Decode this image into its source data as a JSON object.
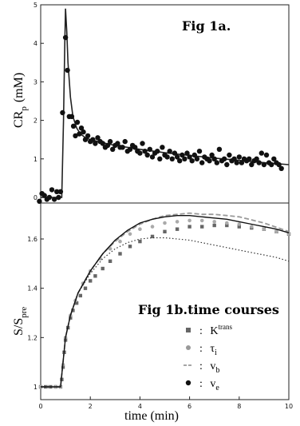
{
  "chart_data": [
    {
      "type": "scatter",
      "title": "Fig 1a.",
      "ylabel_main": "CR",
      "ylabel_sub": "p",
      "ylabel_units": "(mM)",
      "xlim": [
        0,
        10
      ],
      "ylim": [
        0,
        5
      ],
      "yticks": [
        "0",
        "1",
        "2",
        "3",
        "4",
        "5"
      ],
      "series": [
        {
          "style": "points",
          "x": [
            -0.05,
            0.05,
            0.15,
            0.25,
            0.35,
            0.45,
            0.55,
            0.65,
            0.72,
            0.8,
            0.88,
            1.0,
            1.08,
            1.15,
            1.25,
            1.32,
            1.4,
            1.48,
            1.56,
            1.64,
            1.72,
            1.8,
            1.9,
            2.0,
            2.1,
            2.2,
            2.3,
            2.4,
            2.5,
            2.6,
            2.7,
            2.8,
            2.9,
            3.0,
            3.1,
            3.2,
            3.3,
            3.4,
            3.5,
            3.6,
            3.7,
            3.8,
            3.9,
            4.0,
            4.1,
            4.2,
            4.3,
            4.4,
            4.5,
            4.6,
            4.7,
            4.8,
            4.9,
            5.0,
            5.1,
            5.2,
            5.3,
            5.4,
            5.5,
            5.6,
            5.7,
            5.8,
            5.9,
            6.0,
            6.1,
            6.2,
            6.3,
            6.4,
            6.5,
            6.6,
            6.7,
            6.8,
            6.9,
            7.0,
            7.1,
            7.2,
            7.3,
            7.4,
            7.5,
            7.6,
            7.7,
            7.8,
            7.9,
            8.0,
            8.1,
            8.2,
            8.3,
            8.4,
            8.5,
            8.6,
            8.7,
            8.8,
            8.9,
            9.0,
            9.1,
            9.2,
            9.3,
            9.4,
            9.5,
            9.6,
            9.7
          ],
          "y": [
            -0.1,
            0.1,
            0.05,
            -0.05,
            0.0,
            0.2,
            -0.05,
            0.15,
            0.0,
            0.15,
            2.2,
            4.15,
            3.3,
            2.1,
            2.1,
            1.85,
            1.6,
            1.95,
            1.65,
            1.8,
            1.7,
            1.5,
            1.6,
            1.45,
            1.5,
            1.4,
            1.55,
            1.45,
            1.4,
            1.3,
            1.35,
            1.45,
            1.25,
            1.35,
            1.4,
            1.3,
            1.3,
            1.45,
            1.2,
            1.25,
            1.35,
            1.3,
            1.2,
            1.15,
            1.4,
            1.2,
            1.1,
            1.25,
            1.05,
            1.15,
            1.2,
            1.0,
            1.3,
            1.1,
            1.05,
            1.2,
            1.0,
            1.15,
            1.05,
            0.95,
            1.1,
            1.0,
            1.15,
            1.05,
            0.95,
            1.1,
            1.0,
            1.2,
            0.9,
            1.05,
            1.0,
            0.95,
            1.1,
            1.0,
            0.9,
            1.25,
            0.95,
            1.0,
            0.85,
            1.1,
            0.95,
            1.0,
            0.9,
            1.05,
            0.9,
            1.0,
            0.95,
            1.0,
            0.85,
            0.95,
            1.0,
            0.9,
            1.15,
            0.85,
            1.1,
            0.9,
            0.85,
            1.0,
            0.9,
            0.85,
            0.75
          ]
        },
        {
          "style": "line",
          "x": [
            0.0,
            0.3,
            0.6,
            0.85,
            0.92,
            0.97,
            1.0,
            1.05,
            1.1,
            1.2,
            1.3,
            1.45,
            1.6,
            1.8,
            2.0,
            2.5,
            3.0,
            4.0,
            5.0,
            6.0,
            7.0,
            8.0,
            9.0,
            10.0
          ],
          "y": [
            0.0,
            0.0,
            0.0,
            0.0,
            2.0,
            4.0,
            4.9,
            4.3,
            3.5,
            2.6,
            2.1,
            1.8,
            1.65,
            1.55,
            1.5,
            1.42,
            1.35,
            1.25,
            1.16,
            1.09,
            1.02,
            0.96,
            0.9,
            0.85
          ]
        }
      ]
    },
    {
      "type": "line",
      "title": "Fig 1b.time courses",
      "xlabel": "time  (min)",
      "ylabel_main": "S/S",
      "ylabel_sub": "pre",
      "xlim": [
        0,
        10
      ],
      "ylim": [
        0.97,
        1.75
      ],
      "xticks": [
        "0",
        "2",
        "4",
        "6",
        "8",
        "10"
      ],
      "yticks": [
        "1",
        "1.2",
        "1.4",
        "1.6"
      ],
      "legend": [
        {
          "marker": "square",
          "sep": ":",
          "label": "K",
          "sup": "trans"
        },
        {
          "marker": "circle",
          "sep": ":",
          "label": "τ",
          "sub": "i"
        },
        {
          "marker": "dash",
          "sep": ":",
          "label": "v",
          "sub": "b"
        },
        {
          "marker": "dot",
          "sep": ":",
          "label": "v",
          "sub": "e"
        }
      ],
      "series": [
        {
          "legend_index": 0,
          "x": [
            0.0,
            0.2,
            0.4,
            0.6,
            0.8,
            0.85,
            0.9,
            0.95,
            1.0,
            1.1,
            1.2,
            1.3,
            1.45,
            1.6,
            1.8,
            2.0,
            2.2,
            2.5,
            2.8,
            3.2,
            3.6,
            4.0,
            4.5,
            5.0,
            5.5,
            6.0,
            6.5,
            7.0,
            7.5,
            8.0,
            8.5,
            9.0,
            9.5,
            10.0
          ],
          "y": [
            1.0,
            1.0,
            1.0,
            1.0,
            1.0,
            1.03,
            1.08,
            1.14,
            1.19,
            1.24,
            1.28,
            1.31,
            1.34,
            1.37,
            1.4,
            1.43,
            1.45,
            1.48,
            1.51,
            1.54,
            1.57,
            1.59,
            1.61,
            1.63,
            1.64,
            1.65,
            1.65,
            1.655,
            1.655,
            1.65,
            1.645,
            1.64,
            1.63,
            1.62
          ]
        },
        {
          "legend_index": 1,
          "x": [
            0.0,
            0.3,
            0.6,
            0.8,
            0.9,
            1.0,
            1.2,
            1.4,
            1.7,
            2.0,
            2.4,
            2.8,
            3.2,
            3.6,
            4.0,
            4.5,
            5.0,
            5.5,
            6.0,
            6.5,
            7.0,
            7.5,
            8.0,
            8.5,
            9.0,
            9.5,
            10.0
          ],
          "y": [
            1.0,
            1.0,
            1.0,
            1.0,
            1.09,
            1.2,
            1.29,
            1.35,
            1.42,
            1.47,
            1.52,
            1.56,
            1.59,
            1.62,
            1.64,
            1.65,
            1.665,
            1.67,
            1.675,
            1.675,
            1.67,
            1.665,
            1.66,
            1.65,
            1.64,
            1.63,
            1.62
          ]
        },
        {
          "legend_index": 2,
          "x": [
            0.0,
            0.8,
            0.9,
            1.0,
            1.2,
            1.5,
            2.0,
            2.5,
            3.0,
            3.5,
            4.0,
            4.5,
            5.0,
            5.5,
            6.0,
            6.5,
            7.0,
            7.5,
            8.0,
            9.0,
            10.0
          ],
          "y": [
            1.0,
            1.0,
            1.1,
            1.2,
            1.29,
            1.38,
            1.47,
            1.54,
            1.59,
            1.63,
            1.66,
            1.68,
            1.695,
            1.7,
            1.705,
            1.7,
            1.7,
            1.695,
            1.69,
            1.665,
            1.63
          ]
        },
        {
          "legend_index": 3,
          "x": [
            0.0,
            0.8,
            0.9,
            1.0,
            1.2,
            1.5,
            2.0,
            2.5,
            3.0,
            3.5,
            4.0,
            4.5,
            5.0,
            5.5,
            6.0,
            6.5,
            7.0,
            7.5,
            8.0,
            8.5,
            9.0,
            9.5,
            10.0
          ],
          "y": [
            1.0,
            1.0,
            1.1,
            1.2,
            1.29,
            1.38,
            1.46,
            1.52,
            1.56,
            1.585,
            1.6,
            1.605,
            1.605,
            1.6,
            1.595,
            1.585,
            1.575,
            1.565,
            1.555,
            1.545,
            1.535,
            1.525,
            1.51
          ]
        },
        {
          "legend_index": 3,
          "solid": true,
          "x": [
            0.0,
            0.8,
            0.9,
            1.0,
            1.2,
            1.5,
            2.0,
            2.5,
            3.0,
            3.5,
            4.0,
            4.5,
            5.0,
            5.5,
            6.0,
            6.5,
            7.0,
            7.5,
            8.0,
            8.5,
            9.0,
            9.5,
            10.0
          ],
          "y": [
            1.0,
            1.0,
            1.1,
            1.2,
            1.29,
            1.38,
            1.47,
            1.54,
            1.595,
            1.635,
            1.665,
            1.68,
            1.69,
            1.695,
            1.695,
            1.69,
            1.685,
            1.68,
            1.67,
            1.66,
            1.65,
            1.64,
            1.625
          ]
        }
      ]
    }
  ]
}
